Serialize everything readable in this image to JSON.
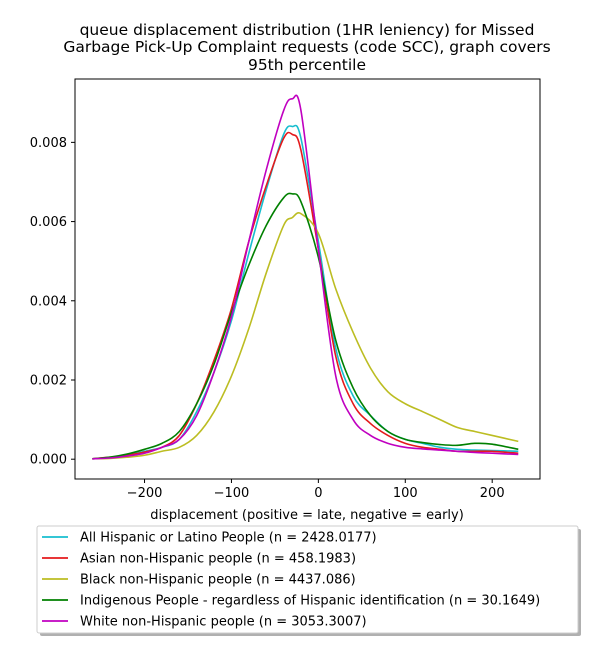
{
  "chart_data": {
    "type": "line",
    "title_lines": [
      "queue displacement distribution (1HR leniency) for Missed",
      "Garbage Pick-Up Complaint  requests (code SCC), graph covers",
      "95th percentile"
    ],
    "xlabel": "displacement (positive = late, negative = early)",
    "ylabel": "",
    "xlim": [
      -280,
      255
    ],
    "ylim": [
      -0.0005,
      0.0096
    ],
    "x_ticks": [
      -200,
      -100,
      0,
      100,
      200
    ],
    "x_tick_labels": [
      "−200",
      "−100",
      "0",
      "100",
      "200"
    ],
    "y_ticks": [
      0.0,
      0.002,
      0.004,
      0.006,
      0.008
    ],
    "y_tick_labels": [
      "0.000",
      "0.002",
      "0.004",
      "0.006",
      "0.008"
    ],
    "grid": false,
    "legend_position": "below plot",
    "x": [
      -260,
      -240,
      -220,
      -200,
      -180,
      -160,
      -140,
      -120,
      -100,
      -80,
      -60,
      -40,
      -30,
      -20,
      0,
      20,
      40,
      60,
      80,
      100,
      120,
      140,
      160,
      180,
      200,
      230
    ],
    "series": [
      {
        "name": "All Hispanic or Latino People (n = 2428.0177)",
        "color": "#17becf",
        "values": [
          1e-05,
          4e-05,
          0.0001,
          0.0002,
          0.0003,
          0.0005,
          0.0012,
          0.0022,
          0.0035,
          0.0052,
          0.0068,
          0.0082,
          0.0084,
          0.0081,
          0.0055,
          0.0028,
          0.0016,
          0.0011,
          0.0007,
          0.0005,
          0.0004,
          0.0003,
          0.00025,
          0.00023,
          0.00022,
          0.0002
        ]
      },
      {
        "name": "Asian non-Hispanic people (n = 458.1983)",
        "color": "#e41a1c",
        "values": [
          1e-05,
          5e-05,
          0.0001,
          0.00018,
          0.0003,
          0.0006,
          0.0014,
          0.0025,
          0.0038,
          0.0055,
          0.0069,
          0.0081,
          0.0082,
          0.0078,
          0.0053,
          0.0026,
          0.0014,
          0.0009,
          0.0006,
          0.0004,
          0.0003,
          0.00025,
          0.0002,
          0.0002,
          0.0002,
          0.00015
        ]
      },
      {
        "name": "Black non-Hispanic people (n = 4437.086)",
        "color": "#bcbd22",
        "values": [
          1e-05,
          2e-05,
          5e-05,
          0.0001,
          0.0002,
          0.0003,
          0.0006,
          0.0012,
          0.0021,
          0.0033,
          0.0047,
          0.0059,
          0.0061,
          0.0062,
          0.0057,
          0.0043,
          0.0032,
          0.0023,
          0.0017,
          0.0014,
          0.0012,
          0.001,
          0.0008,
          0.0007,
          0.0006,
          0.00045
        ]
      },
      {
        "name": "Indigenous People - regardless of Hispanic identification (n = 30.1649)",
        "color": "#008000",
        "values": [
          1e-05,
          5e-05,
          0.00013,
          0.00025,
          0.0004,
          0.0007,
          0.0014,
          0.0024,
          0.0037,
          0.0049,
          0.0059,
          0.0066,
          0.0067,
          0.0065,
          0.0051,
          0.003,
          0.0018,
          0.0011,
          0.0007,
          0.0005,
          0.00042,
          0.00037,
          0.00035,
          0.0004,
          0.00038,
          0.00025
        ]
      },
      {
        "name": "White non-Hispanic people (n = 3053.3007)",
        "color": "#c000c0",
        "values": [
          1e-05,
          3e-05,
          8e-05,
          0.00015,
          0.0003,
          0.0005,
          0.0011,
          0.0022,
          0.0036,
          0.0055,
          0.0073,
          0.0088,
          0.0091,
          0.0088,
          0.0053,
          0.0021,
          0.001,
          0.0006,
          0.0004,
          0.0003,
          0.00026,
          0.00023,
          0.0002,
          0.00017,
          0.00015,
          0.00012
        ]
      }
    ]
  }
}
